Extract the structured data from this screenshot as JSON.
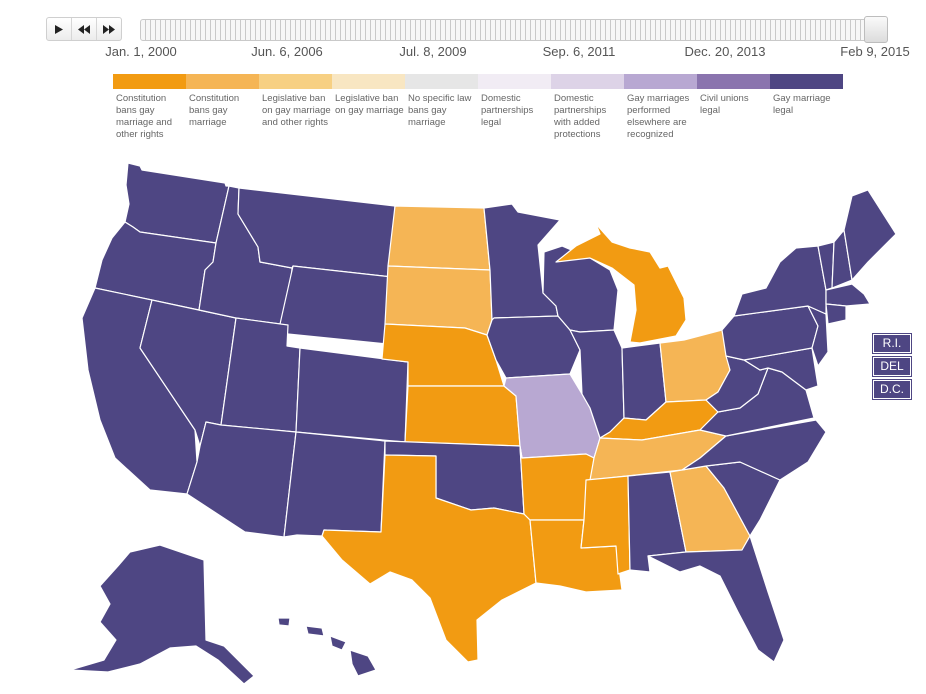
{
  "timeline": {
    "ticks": [
      "Jan. 1, 2000",
      "Jun. 6, 2006",
      "Jul. 8, 2009",
      "Sep. 6, 2011",
      "Dec. 20, 2013",
      "Feb 9, 2015"
    ]
  },
  "legend": [
    {
      "label": "Constitution bans gay marriage and other rights",
      "color": "#f29b12"
    },
    {
      "label": "Constitution bans gay marriage",
      "color": "#f5b555"
    },
    {
      "label": "Legislative ban on gay marriage and other rights",
      "color": "#f7d083"
    },
    {
      "label": "Legislative ban on gay marriage",
      "color": "#f8e6c2"
    },
    {
      "label": "No specific law bans gay marriage",
      "color": "#e6e6e6"
    },
    {
      "label": "Domestic partnerships legal",
      "color": "#f1ecf4"
    },
    {
      "label": "Domestic partnerships with added protections",
      "color": "#ddd3e7"
    },
    {
      "label": "Gay marriages performed elsewhere are recognized",
      "color": "#b8a8d2"
    },
    {
      "label": "Civil unions legal",
      "color": "#8a74ae"
    },
    {
      "label": "Gay marriage legal",
      "color": "#4e4683"
    }
  ],
  "small_states": [
    "R.I.",
    "DEL",
    "D.C."
  ],
  "statuses": {
    "WA": "Gay marriage legal",
    "OR": "Gay marriage legal",
    "CA": "Gay marriage legal",
    "NV": "Gay marriage legal",
    "ID": "Gay marriage legal",
    "MT": "Gay marriage legal",
    "WY": "Gay marriage legal",
    "UT": "Gay marriage legal",
    "CO": "Gay marriage legal",
    "AZ": "Gay marriage legal",
    "NM": "Gay marriage legal",
    "ND": "Constitution bans gay marriage",
    "SD": "Constitution bans gay marriage",
    "NE": "Constitution bans gay marriage and other rights",
    "KS": "Constitution bans gay marriage and other rights",
    "OK": "Gay marriage legal",
    "TX": "Constitution bans gay marriage and other rights",
    "MN": "Gay marriage legal",
    "IA": "Gay marriage legal",
    "MO": "Gay marriages performed elsewhere are recognized",
    "AR": "Constitution bans gay marriage and other rights",
    "LA": "Constitution bans gay marriage and other rights",
    "WI": "Gay marriage legal",
    "IL": "Gay marriage legal",
    "MI": "Constitution bans gay marriage and other rights",
    "IN": "Gay marriage legal",
    "OH": "Constitution bans gay marriage",
    "KY": "Constitution bans gay marriage and other rights",
    "TN": "Constitution bans gay marriage",
    "MS": "Constitution bans gay marriage and other rights",
    "AL": "Gay marriage legal",
    "GA": "Constitution bans gay marriage",
    "FL": "Gay marriage legal",
    "SC": "Gay marriage legal",
    "NC": "Gay marriage legal",
    "VA": "Gay marriage legal",
    "WV": "Gay marriage legal",
    "PA": "Gay marriage legal",
    "NY": "Gay marriage legal",
    "VT": "Gay marriage legal",
    "NH": "Gay marriage legal",
    "ME": "Gay marriage legal",
    "MA": "Gay marriage legal",
    "CT": "Gay marriage legal",
    "NJ": "Gay marriage legal",
    "MD": "Gay marriage legal",
    "AK": "Gay marriage legal",
    "HI": "Gay marriage legal"
  }
}
